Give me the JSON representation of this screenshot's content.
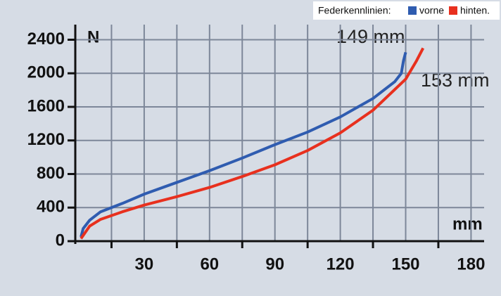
{
  "chart_data": {
    "type": "line",
    "legend_title": "Federkennlinien:",
    "y_unit": "N",
    "x_unit": "mm",
    "annotations": [
      "149 mm",
      "153 mm"
    ],
    "xlim": [
      0,
      186
    ],
    "ylim": [
      0,
      2580
    ],
    "xticks": [
      30,
      60,
      90,
      120,
      150,
      180
    ],
    "xminor": [
      15,
      45,
      75,
      105,
      135,
      165
    ],
    "yticks": [
      0,
      400,
      800,
      1200,
      1600,
      2000,
      2400
    ],
    "grid": true,
    "series": [
      {
        "name": "vorne",
        "color": "#2f5cb0",
        "x": [
          1,
          2,
          5,
          10,
          20,
          30,
          45,
          60,
          75,
          90,
          105,
          120,
          135,
          145,
          148,
          149,
          150
        ],
        "values": [
          50,
          150,
          250,
          350,
          450,
          560,
          700,
          840,
          990,
          1150,
          1300,
          1480,
          1700,
          1900,
          2000,
          2150,
          2250
        ]
      },
      {
        "name": "hinten.",
        "color": "#e8301e",
        "x": [
          1,
          5,
          10,
          20,
          30,
          45,
          60,
          75,
          90,
          105,
          120,
          135,
          150,
          155,
          158
        ],
        "values": [
          30,
          180,
          260,
          350,
          430,
          530,
          640,
          770,
          910,
          1080,
          1290,
          1560,
          1930,
          2150,
          2300
        ]
      }
    ]
  }
}
